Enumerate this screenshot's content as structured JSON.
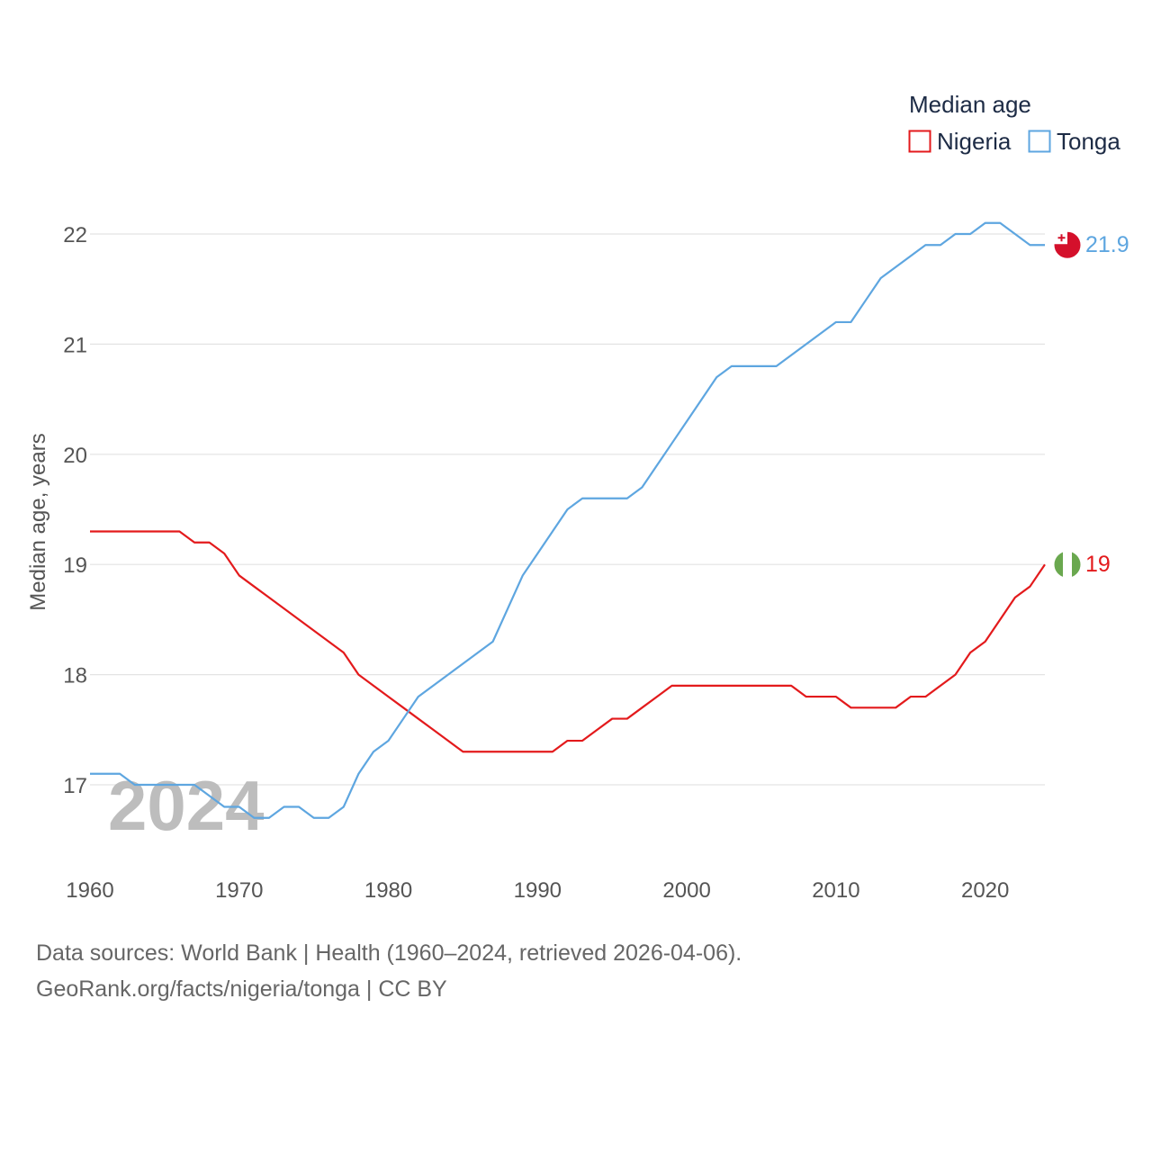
{
  "chart_data": {
    "type": "line",
    "title": "",
    "legend_title": "Median age",
    "ylabel": "Median age, years",
    "xlabel": "",
    "xlim": [
      1960,
      2024
    ],
    "ylim": [
      16.3,
      22.4
    ],
    "x_ticks": [
      1960,
      1970,
      1980,
      1990,
      2000,
      2010,
      2020
    ],
    "y_ticks": [
      17,
      18,
      19,
      20,
      21,
      22
    ],
    "year_watermark": "2024",
    "x": [
      1960,
      1961,
      1962,
      1963,
      1964,
      1965,
      1966,
      1967,
      1968,
      1969,
      1970,
      1971,
      1972,
      1973,
      1974,
      1975,
      1976,
      1977,
      1978,
      1979,
      1980,
      1981,
      1982,
      1983,
      1984,
      1985,
      1986,
      1987,
      1988,
      1989,
      1990,
      1991,
      1992,
      1993,
      1994,
      1995,
      1996,
      1997,
      1998,
      1999,
      2000,
      2001,
      2002,
      2003,
      2004,
      2005,
      2006,
      2007,
      2008,
      2009,
      2010,
      2011,
      2012,
      2013,
      2014,
      2015,
      2016,
      2017,
      2018,
      2019,
      2020,
      2021,
      2022,
      2023,
      2024
    ],
    "series": [
      {
        "name": "Nigeria",
        "color": "#e31a1c",
        "end_label": "19",
        "flag": "nigeria-flag",
        "values": [
          19.3,
          19.3,
          19.3,
          19.3,
          19.3,
          19.3,
          19.3,
          19.2,
          19.2,
          19.1,
          18.9,
          18.8,
          18.7,
          18.6,
          18.5,
          18.4,
          18.3,
          18.2,
          18.0,
          17.9,
          17.8,
          17.7,
          17.6,
          17.5,
          17.4,
          17.3,
          17.3,
          17.3,
          17.3,
          17.3,
          17.3,
          17.3,
          17.4,
          17.4,
          17.5,
          17.6,
          17.6,
          17.7,
          17.8,
          17.9,
          17.9,
          17.9,
          17.9,
          17.9,
          17.9,
          17.9,
          17.9,
          17.9,
          17.8,
          17.8,
          17.8,
          17.7,
          17.7,
          17.7,
          17.7,
          17.8,
          17.8,
          17.9,
          18.0,
          18.2,
          18.3,
          18.5,
          18.7,
          18.8,
          19.0
        ]
      },
      {
        "name": "Tonga",
        "color": "#5ea6e0",
        "end_label": "21.9",
        "flag": "tonga-flag",
        "values": [
          17.1,
          17.1,
          17.1,
          17.0,
          17.0,
          17.0,
          17.0,
          17.0,
          16.9,
          16.8,
          16.8,
          16.7,
          16.7,
          16.8,
          16.8,
          16.7,
          16.7,
          16.8,
          17.1,
          17.3,
          17.4,
          17.6,
          17.8,
          17.9,
          18.0,
          18.1,
          18.2,
          18.3,
          18.6,
          18.9,
          19.1,
          19.3,
          19.5,
          19.6,
          19.6,
          19.6,
          19.6,
          19.7,
          19.9,
          20.1,
          20.3,
          20.5,
          20.7,
          20.8,
          20.8,
          20.8,
          20.8,
          20.9,
          21.0,
          21.1,
          21.2,
          21.2,
          21.4,
          21.6,
          21.7,
          21.8,
          21.9,
          21.9,
          22.0,
          22.0,
          22.1,
          22.1,
          22.0,
          21.9,
          21.9
        ]
      }
    ]
  },
  "footer": {
    "source_line": "Data sources: World Bank | Health (1960–2024, retrieved 2026-04-06).",
    "credit_line": "GeoRank.org/facts/nigeria/tonga | CC BY"
  }
}
